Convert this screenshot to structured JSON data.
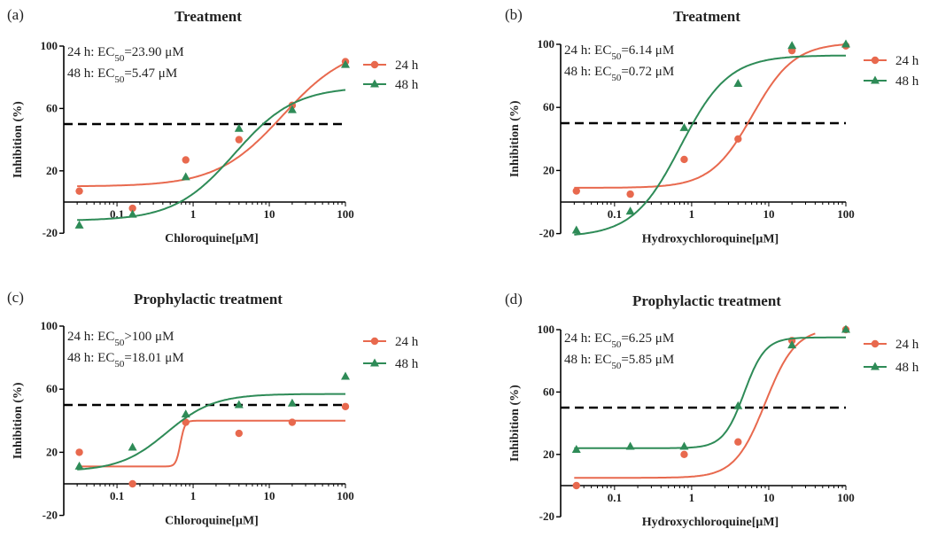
{
  "colors": {
    "h24": "#E8694E",
    "h48": "#2E8B57",
    "threshold": "#000000",
    "axis": "#000000"
  },
  "chart_data": [
    {
      "panel": "(a)",
      "type": "scatter",
      "title": "Treatment",
      "xlabel": "Chloroquine[μM]",
      "ylabel": "Inhibition (%)",
      "xscale": "log",
      "xlim": [
        0.02,
        100
      ],
      "ylim": [
        -20,
        100
      ],
      "yticks": [
        -20,
        20,
        60,
        100
      ],
      "xticks": [
        {
          "v": 0.1,
          "label": "0.1"
        },
        {
          "v": 1,
          "label": "1"
        },
        {
          "v": 10,
          "label": "10"
        },
        {
          "v": 100,
          "label": "100"
        }
      ],
      "threshold": 50,
      "legend_position": "top-right",
      "annotations": [
        {
          "pre": "24 h: EC",
          "sub": "50",
          "post": "=23.90 μM"
        },
        {
          "pre": "48 h: EC",
          "sub": "50",
          "post": "=5.47 μM"
        }
      ],
      "series": [
        {
          "name": "24 h",
          "marker": "circle",
          "x": [
            0.032,
            0.16,
            0.8,
            4,
            20,
            100
          ],
          "y": [
            7,
            -4,
            27,
            40,
            62,
            90
          ],
          "fit": {
            "bottom": 10,
            "top": 101,
            "ec50": 15,
            "hill": 1.0
          }
        },
        {
          "name": "48 h",
          "marker": "triangle",
          "x": [
            0.032,
            0.16,
            0.8,
            4,
            20,
            100
          ],
          "y": [
            -15,
            -8,
            16,
            47,
            59,
            88
          ],
          "fit": {
            "bottom": -12,
            "top": 74,
            "ec50": 3.5,
            "hill": 1.1
          }
        }
      ]
    },
    {
      "panel": "(b)",
      "type": "scatter",
      "title": "Treatment",
      "xlabel": "Hydroxychloroquine[μM]",
      "ylabel": "Inhibition (%)",
      "xscale": "log",
      "xlim": [
        0.02,
        100
      ],
      "ylim": [
        -20,
        100
      ],
      "yticks": [
        -20,
        20,
        60,
        100
      ],
      "xticks": [
        {
          "v": 0.1,
          "label": "0.1"
        },
        {
          "v": 1,
          "label": "1"
        },
        {
          "v": 10,
          "label": "10"
        },
        {
          "v": 100,
          "label": "100"
        }
      ],
      "threshold": 50,
      "legend_position": "top-right",
      "annotations": [
        {
          "pre": "24 h: EC",
          "sub": "50",
          "post": "=6.14 μM"
        },
        {
          "pre": "48 h: EC",
          "sub": "50",
          "post": "=0.72 μM"
        }
      ],
      "series": [
        {
          "name": "24 h",
          "marker": "circle",
          "x": [
            0.032,
            0.16,
            0.8,
            4,
            20,
            100
          ],
          "y": [
            7,
            5,
            27,
            40,
            96,
            99
          ],
          "fit": {
            "bottom": 9,
            "top": 101,
            "ec50": 6.14,
            "hill": 1.6
          }
        },
        {
          "name": "48 h",
          "marker": "triangle",
          "x": [
            0.032,
            0.16,
            0.8,
            4,
            20,
            100
          ],
          "y": [
            -18,
            -6,
            47,
            75,
            99,
            100
          ],
          "fit": {
            "bottom": -22,
            "top": 93,
            "ec50": 0.72,
            "hill": 1.4
          }
        }
      ]
    },
    {
      "panel": "(c)",
      "type": "scatter",
      "title": "Prophylactic treatment",
      "xlabel": "Chloroquine[μM]",
      "ylabel": "Inhibition (%)",
      "xscale": "log",
      "xlim": [
        0.02,
        100
      ],
      "ylim": [
        -20,
        100
      ],
      "yticks": [
        -20,
        20,
        60,
        100
      ],
      "xticks": [
        {
          "v": 0.1,
          "label": "0.1"
        },
        {
          "v": 1,
          "label": "1"
        },
        {
          "v": 10,
          "label": "10"
        },
        {
          "v": 100,
          "label": "100"
        }
      ],
      "threshold": 50,
      "legend_position": "top-right",
      "annotations": [
        {
          "pre": "24 h: EC",
          "sub": "50",
          "post": ">100 μM"
        },
        {
          "pre": "48 h: EC",
          "sub": "50",
          "post": "=18.01 μM"
        }
      ],
      "series": [
        {
          "name": "24 h",
          "marker": "circle",
          "x": [
            0.032,
            0.16,
            0.8,
            4,
            20,
            100
          ],
          "y": [
            20,
            0,
            39,
            32,
            39,
            49
          ],
          "fit": {
            "bottom": 11,
            "top": 40,
            "ec50": 0.68,
            "hill": 15
          }
        },
        {
          "name": "48 h",
          "marker": "triangle",
          "x": [
            0.032,
            0.16,
            0.8,
            4,
            20,
            100
          ],
          "y": [
            11,
            23,
            44,
            50,
            51,
            68
          ],
          "fit": {
            "bottom": 8,
            "top": 57,
            "ec50": 0.45,
            "hill": 1.4
          }
        }
      ]
    },
    {
      "panel": "(d)",
      "type": "scatter",
      "title": "Prophylactic treatment",
      "xlabel": "Hydroxychloroquine[μM]",
      "ylabel": "Inhibition (%)",
      "xscale": "log",
      "xlim": [
        0.02,
        100
      ],
      "ylim": [
        -20,
        100
      ],
      "yticks": [
        -20,
        20,
        60,
        100
      ],
      "xticks": [
        {
          "v": 0.1,
          "label": "0.1"
        },
        {
          "v": 1,
          "label": "1"
        },
        {
          "v": 10,
          "label": "10"
        },
        {
          "v": 100,
          "label": "100"
        }
      ],
      "threshold": 50,
      "legend_position": "top-right",
      "annotations": [
        {
          "pre": "24 h: EC",
          "sub": "50",
          "post": "=6.25 μM"
        },
        {
          "pre": "48 h: EC",
          "sub": "50",
          "post": "=5.85 μM"
        }
      ],
      "series": [
        {
          "name": "24 h",
          "marker": "circle",
          "x": [
            0.032,
            0.8,
            4,
            20,
            100
          ],
          "y": [
            0,
            20,
            28,
            93,
            100
          ],
          "fit_xmax": 40,
          "fit": {
            "bottom": 5,
            "top": 101,
            "ec50": 9,
            "hill": 2.2
          }
        },
        {
          "name": "48 h",
          "marker": "triangle",
          "x": [
            0.032,
            0.16,
            0.8,
            4,
            20,
            100
          ],
          "y": [
            23,
            25,
            25,
            51,
            90,
            100
          ],
          "fit": {
            "bottom": 24,
            "top": 95,
            "ec50": 4.8,
            "hill": 3.2
          }
        }
      ]
    }
  ]
}
